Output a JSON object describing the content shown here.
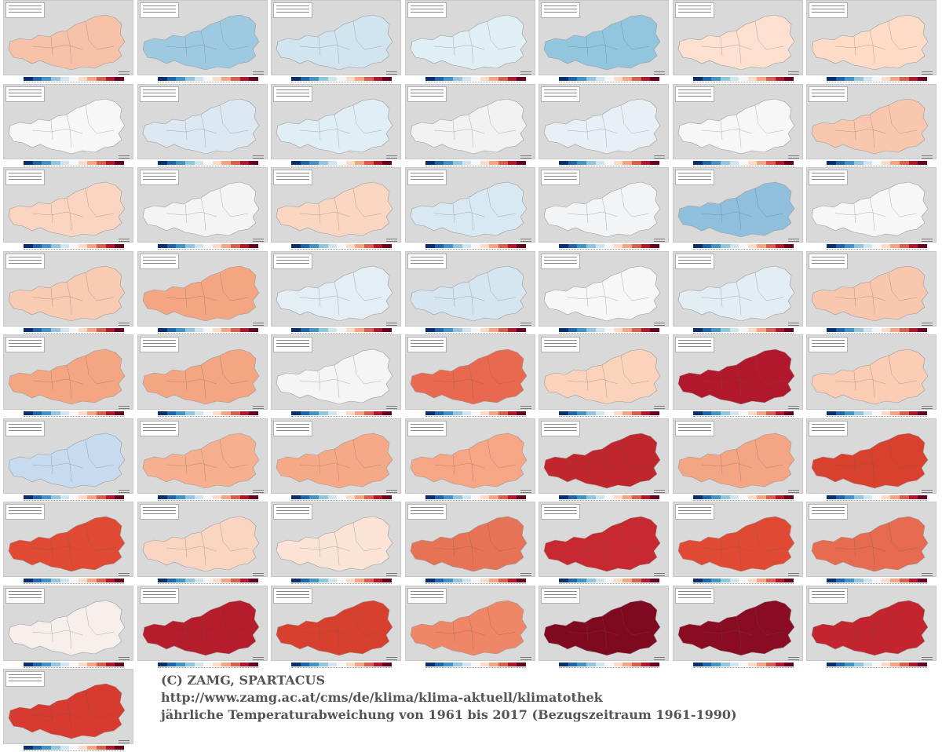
{
  "caption": {
    "line1": "(C) ZAMG, SPARTACUS",
    "line2": "http://www.zamg.ac.at/cms/de/klima/klima-aktuell/klimatothek",
    "line3": "jährliche Temperaturabweichung von 1961 bis 2017 (Bezugszeitraum 1961-1990)"
  },
  "colorbar": [
    "#08306b",
    "#2166ac",
    "#4393c3",
    "#92c5de",
    "#d1e5f0",
    "#f7f7f7",
    "#fddbc7",
    "#f4a582",
    "#d6604d",
    "#b2182b",
    "#67001f"
  ],
  "colors": {
    "background": "#ffffff",
    "map_background": "#d9d9d9",
    "caption": "#555555"
  },
  "years": [
    1961,
    1962,
    1963,
    1964,
    1965,
    1966,
    1967,
    1968,
    1969,
    1970,
    1971,
    1972,
    1973,
    1974,
    1975,
    1976,
    1977,
    1978,
    1979,
    1980,
    1981,
    1982,
    1983,
    1984,
    1985,
    1986,
    1987,
    1988,
    1989,
    1990,
    1991,
    1992,
    1993,
    1994,
    1995,
    1996,
    1997,
    1998,
    1999,
    2000,
    2001,
    2002,
    2003,
    2004,
    2005,
    2006,
    2007,
    2008,
    2009,
    2010,
    2011,
    2012,
    2013,
    2014,
    2015,
    2016,
    2017
  ],
  "tile_fill": [
    "#f8c2a8",
    "#9ecae1",
    "#d1e5f0",
    "#e0eef6",
    "#92c5de",
    "#fde0cf",
    "#fddbc7",
    "#f7f7f7",
    "#dde9f2",
    "#e0eef6",
    "#f2f2f2",
    "#e8f0f6",
    "#f7f7f7",
    "#f9c7ad",
    "#fbd5c1",
    "#f4f4f4",
    "#fbd7c3",
    "#d9e9f3",
    "#f2f4f6",
    "#8fbfdc",
    "#f7f7f7",
    "#f9cbb3",
    "#f4a582",
    "#e4eef5",
    "#d5e6f1",
    "#f7f7f7",
    "#e2edf4",
    "#f9c7ad",
    "#f4a582",
    "#f4a582",
    "#f5f5f5",
    "#e8694f",
    "#fbd3bd",
    "#b2182b",
    "#fbcdb5",
    "#c6dbef",
    "#f6b090",
    "#f6a987",
    "#f6a585",
    "#c0272d",
    "#f3a584",
    "#d9412f",
    "#e04a35",
    "#fad6c2",
    "#fbe3d6",
    "#e67356",
    "#c82830",
    "#e04a35",
    "#e66b50",
    "#f7efec",
    "#b51d2c",
    "#d7402f",
    "#ee8667",
    "#7f0a20",
    "#8a0c23",
    "#c2252d",
    "#d73a2e"
  ]
}
